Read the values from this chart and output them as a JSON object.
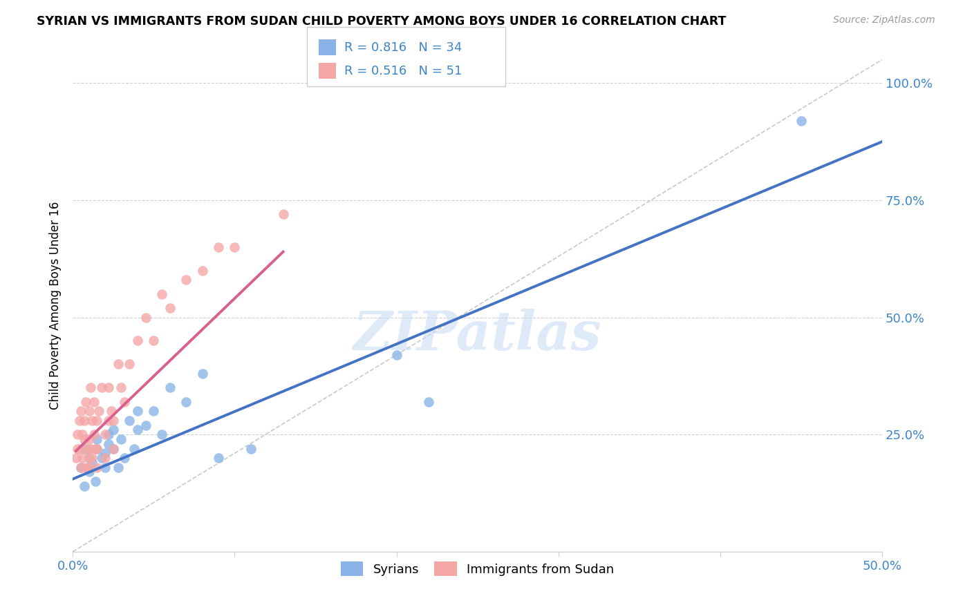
{
  "title": "SYRIAN VS IMMIGRANTS FROM SUDAN CHILD POVERTY AMONG BOYS UNDER 16 CORRELATION CHART",
  "source": "Source: ZipAtlas.com",
  "ylabel": "Child Poverty Among Boys Under 16",
  "xlim": [
    0.0,
    0.5
  ],
  "ylim": [
    0.0,
    1.05
  ],
  "ytick_positions": [
    0.0,
    0.25,
    0.5,
    0.75,
    1.0
  ],
  "ytick_labels": [
    "",
    "25.0%",
    "50.0%",
    "75.0%",
    "100.0%"
  ],
  "xtick_positions": [
    0.0,
    0.1,
    0.2,
    0.3,
    0.4,
    0.5
  ],
  "xtick_labels": [
    "0.0%",
    "",
    "",
    "",
    "",
    "50.0%"
  ],
  "blue_r": 0.816,
  "blue_n": 34,
  "pink_r": 0.516,
  "pink_n": 51,
  "blue_color": "#8ab4e8",
  "pink_color": "#f4a7a7",
  "blue_line_color": "#4472c4",
  "pink_line_color": "#d95f8e",
  "grid_color": "#d0d0d0",
  "watermark": "ZIPatlas",
  "blue_scatter_x": [
    0.005,
    0.007,
    0.008,
    0.01,
    0.01,
    0.012,
    0.014,
    0.015,
    0.015,
    0.018,
    0.02,
    0.02,
    0.022,
    0.022,
    0.025,
    0.025,
    0.028,
    0.03,
    0.032,
    0.035,
    0.038,
    0.04,
    0.04,
    0.045,
    0.05,
    0.055,
    0.06,
    0.07,
    0.08,
    0.09,
    0.11,
    0.2,
    0.22,
    0.45
  ],
  "blue_scatter_y": [
    0.18,
    0.14,
    0.22,
    0.17,
    0.2,
    0.19,
    0.15,
    0.22,
    0.24,
    0.2,
    0.21,
    0.18,
    0.23,
    0.25,
    0.22,
    0.26,
    0.18,
    0.24,
    0.2,
    0.28,
    0.22,
    0.26,
    0.3,
    0.27,
    0.3,
    0.25,
    0.35,
    0.32,
    0.38,
    0.2,
    0.22,
    0.42,
    0.32,
    0.92
  ],
  "pink_scatter_x": [
    0.002,
    0.003,
    0.003,
    0.004,
    0.005,
    0.005,
    0.005,
    0.006,
    0.006,
    0.007,
    0.007,
    0.008,
    0.008,
    0.009,
    0.01,
    0.01,
    0.01,
    0.01,
    0.011,
    0.011,
    0.012,
    0.012,
    0.013,
    0.013,
    0.014,
    0.015,
    0.015,
    0.015,
    0.016,
    0.018,
    0.02,
    0.02,
    0.022,
    0.022,
    0.024,
    0.025,
    0.025,
    0.028,
    0.03,
    0.032,
    0.035,
    0.04,
    0.045,
    0.05,
    0.055,
    0.06,
    0.07,
    0.08,
    0.09,
    0.1,
    0.13
  ],
  "pink_scatter_y": [
    0.2,
    0.22,
    0.25,
    0.28,
    0.18,
    0.22,
    0.3,
    0.2,
    0.25,
    0.24,
    0.28,
    0.18,
    0.32,
    0.22,
    0.18,
    0.2,
    0.24,
    0.3,
    0.22,
    0.35,
    0.2,
    0.28,
    0.25,
    0.32,
    0.22,
    0.18,
    0.22,
    0.28,
    0.3,
    0.35,
    0.2,
    0.25,
    0.28,
    0.35,
    0.3,
    0.22,
    0.28,
    0.4,
    0.35,
    0.32,
    0.4,
    0.45,
    0.5,
    0.45,
    0.55,
    0.52,
    0.58,
    0.6,
    0.65,
    0.65,
    0.72
  ],
  "blue_line_x0": 0.0,
  "blue_line_x1": 0.5,
  "blue_line_y0": 0.155,
  "blue_line_y1": 0.875,
  "pink_line_x0": 0.002,
  "pink_line_x1": 0.13,
  "pink_line_y0": 0.215,
  "pink_line_y1": 0.64,
  "ref_line_x0": 0.0,
  "ref_line_x1": 0.5,
  "ref_line_y0": 0.0,
  "ref_line_y1": 1.05
}
